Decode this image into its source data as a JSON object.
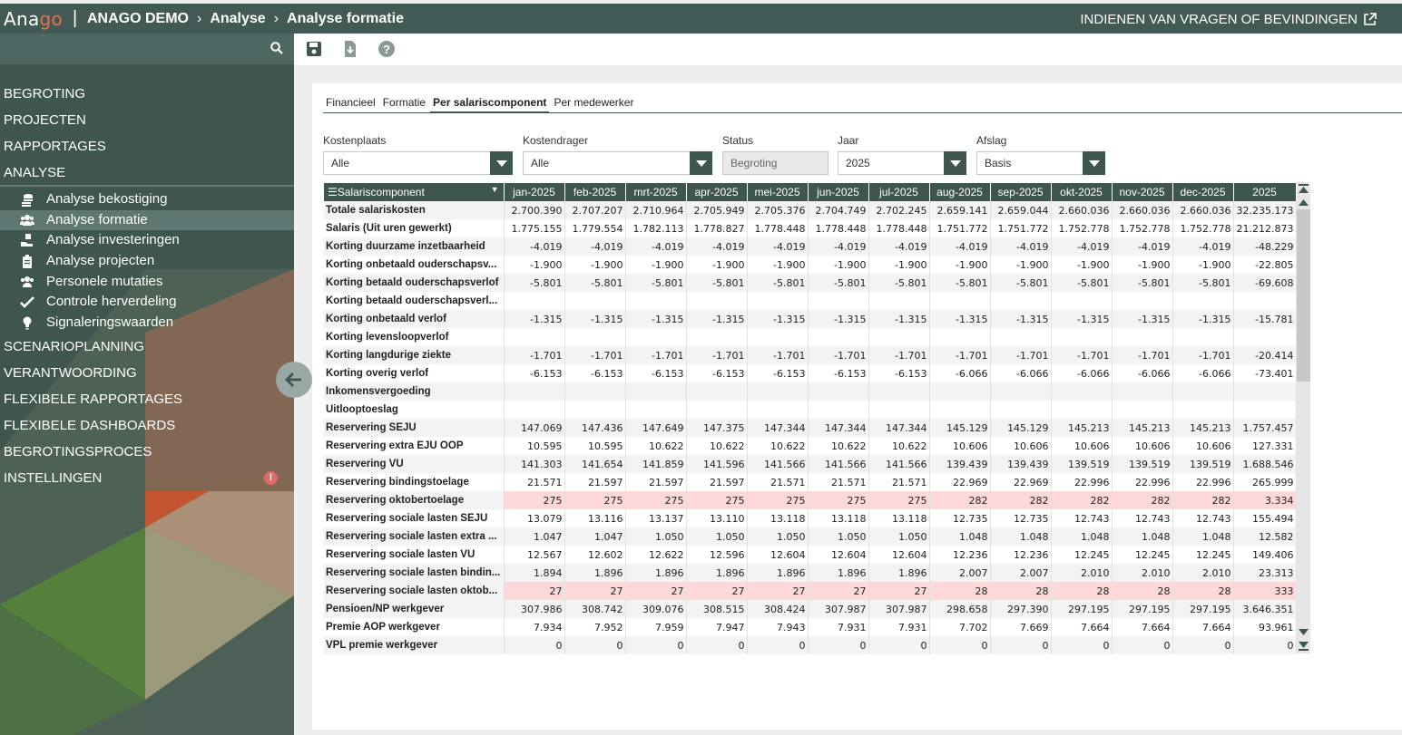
{
  "app": {
    "logo_prefix": "Ana",
    "logo_suffix": "go",
    "separator": "|"
  },
  "breadcrumb": {
    "items": [
      "ANAGO DEMO",
      "Analyse",
      "Analyse formatie"
    ],
    "separator": "›"
  },
  "feedback_link": "INDIENEN VAN VRAGEN OF BEVINDINGEN",
  "sidebar": {
    "items": [
      {
        "label": "BEGROTING"
      },
      {
        "label": "PROJECTEN"
      },
      {
        "label": "RAPPORTAGES"
      },
      {
        "label": "ANALYSE"
      }
    ],
    "sub_items": [
      {
        "label": "Analyse bekostiging",
        "icon": "coins-icon"
      },
      {
        "label": "Analyse formatie",
        "icon": "users-icon",
        "active": true
      },
      {
        "label": "Analyse investeringen",
        "icon": "hand-coins-icon"
      },
      {
        "label": "Analyse projecten",
        "icon": "clipboard-icon"
      },
      {
        "label": "Personele mutaties",
        "icon": "users-icon"
      },
      {
        "label": "Controle herverdeling",
        "icon": "check-icon"
      },
      {
        "label": "Signaleringswaarden",
        "icon": "lightbulb-icon"
      }
    ],
    "items_after": [
      {
        "label": "SCENARIOPLANNING"
      },
      {
        "label": "VERANTWOORDING"
      },
      {
        "label": "FLEXIBELE RAPPORTAGES"
      },
      {
        "label": "FLEXIBELE DASHBOARDS"
      },
      {
        "label": "BEGROTINGSPROCES"
      },
      {
        "label": "INSTELLINGEN",
        "alert": "!"
      }
    ]
  },
  "tabs": [
    "Financieel",
    "Formatie",
    "Per salariscomponent",
    "Per medewerker"
  ],
  "active_tab": "Per salariscomponent",
  "filters": {
    "kostenplaats": {
      "label": "Kostenplaats",
      "value": "Alle"
    },
    "kostendrager": {
      "label": "Kostendrager",
      "value": "Alle"
    },
    "status": {
      "label": "Status",
      "value": "Begroting"
    },
    "jaar": {
      "label": "Jaar",
      "value": "2025"
    },
    "afslag": {
      "label": "Afslag",
      "value": "Basis"
    }
  },
  "table": {
    "first_header": "Salariscomponent",
    "columns": [
      "jan-2025",
      "feb-2025",
      "mrt-2025",
      "apr-2025",
      "mei-2025",
      "jun-2025",
      "jul-2025",
      "aug-2025",
      "sep-2025",
      "okt-2025",
      "nov-2025",
      "dec-2025",
      "2025"
    ],
    "rows": [
      {
        "name": "Totale salariskosten",
        "values": [
          "2.700.390",
          "2.707.207",
          "2.710.964",
          "2.705.949",
          "2.705.376",
          "2.704.749",
          "2.702.245",
          "2.659.141",
          "2.659.044",
          "2.660.036",
          "2.660.036",
          "2.660.036",
          "32.235.173"
        ]
      },
      {
        "name": "Salaris (Uit uren gewerkt)",
        "values": [
          "1.775.155",
          "1.779.554",
          "1.782.113",
          "1.778.827",
          "1.778.448",
          "1.778.448",
          "1.778.448",
          "1.751.772",
          "1.751.772",
          "1.752.778",
          "1.752.778",
          "1.752.778",
          "21.212.873"
        ]
      },
      {
        "name": "Korting duurzame inzetbaarheid",
        "values": [
          "-4.019",
          "-4.019",
          "-4.019",
          "-4.019",
          "-4.019",
          "-4.019",
          "-4.019",
          "-4.019",
          "-4.019",
          "-4.019",
          "-4.019",
          "-4.019",
          "-48.229"
        ]
      },
      {
        "name": "Korting onbetaald ouderschapsv...",
        "values": [
          "-1.900",
          "-1.900",
          "-1.900",
          "-1.900",
          "-1.900",
          "-1.900",
          "-1.900",
          "-1.900",
          "-1.900",
          "-1.900",
          "-1.900",
          "-1.900",
          "-22.805"
        ]
      },
      {
        "name": "Korting betaald ouderschapsverlof",
        "values": [
          "-5.801",
          "-5.801",
          "-5.801",
          "-5.801",
          "-5.801",
          "-5.801",
          "-5.801",
          "-5.801",
          "-5.801",
          "-5.801",
          "-5.801",
          "-5.801",
          "-69.608"
        ]
      },
      {
        "name": "Korting betaald ouderschapsverl...",
        "values": [
          "",
          "",
          "",
          "",
          "",
          "",
          "",
          "",
          "",
          "",
          "",
          "",
          ""
        ]
      },
      {
        "name": "Korting onbetaald verlof",
        "values": [
          "-1.315",
          "-1.315",
          "-1.315",
          "-1.315",
          "-1.315",
          "-1.315",
          "-1.315",
          "-1.315",
          "-1.315",
          "-1.315",
          "-1.315",
          "-1.315",
          "-15.781"
        ]
      },
      {
        "name": "Korting levensloopverlof",
        "values": [
          "",
          "",
          "",
          "",
          "",
          "",
          "",
          "",
          "",
          "",
          "",
          "",
          ""
        ]
      },
      {
        "name": "Korting langdurige ziekte",
        "values": [
          "-1.701",
          "-1.701",
          "-1.701",
          "-1.701",
          "-1.701",
          "-1.701",
          "-1.701",
          "-1.701",
          "-1.701",
          "-1.701",
          "-1.701",
          "-1.701",
          "-20.414"
        ]
      },
      {
        "name": "Korting overig verlof",
        "values": [
          "-6.153",
          "-6.153",
          "-6.153",
          "-6.153",
          "-6.153",
          "-6.153",
          "-6.153",
          "-6.066",
          "-6.066",
          "-6.066",
          "-6.066",
          "-6.066",
          "-73.401"
        ]
      },
      {
        "name": "Inkomensvergoeding",
        "values": [
          "",
          "",
          "",
          "",
          "",
          "",
          "",
          "",
          "",
          "",
          "",
          "",
          ""
        ]
      },
      {
        "name": "Uitlooptoeslag",
        "values": [
          "",
          "",
          "",
          "",
          "",
          "",
          "",
          "",
          "",
          "",
          "",
          "",
          ""
        ]
      },
      {
        "name": "Reservering SEJU",
        "values": [
          "147.069",
          "147.436",
          "147.649",
          "147.375",
          "147.344",
          "147.344",
          "147.344",
          "145.129",
          "145.129",
          "145.213",
          "145.213",
          "145.213",
          "1.757.457"
        ]
      },
      {
        "name": "Reservering extra EJU OOP",
        "values": [
          "10.595",
          "10.595",
          "10.622",
          "10.622",
          "10.622",
          "10.622",
          "10.622",
          "10.606",
          "10.606",
          "10.606",
          "10.606",
          "10.606",
          "127.331"
        ]
      },
      {
        "name": "Reservering VU",
        "values": [
          "141.303",
          "141.654",
          "141.859",
          "141.596",
          "141.566",
          "141.566",
          "141.566",
          "139.439",
          "139.439",
          "139.519",
          "139.519",
          "139.519",
          "1.688.546"
        ]
      },
      {
        "name": "Reservering bindingstoelage",
        "values": [
          "21.571",
          "21.597",
          "21.597",
          "21.597",
          "21.571",
          "21.571",
          "21.571",
          "22.969",
          "22.969",
          "22.996",
          "22.996",
          "22.996",
          "265.999"
        ]
      },
      {
        "name": "Reservering oktobertoelage",
        "highlight": true,
        "values": [
          "275",
          "275",
          "275",
          "275",
          "275",
          "275",
          "275",
          "282",
          "282",
          "282",
          "282",
          "282",
          "3.334"
        ]
      },
      {
        "name": "Reservering sociale lasten SEJU",
        "values": [
          "13.079",
          "13.116",
          "13.137",
          "13.110",
          "13.118",
          "13.118",
          "13.118",
          "12.735",
          "12.735",
          "12.743",
          "12.743",
          "12.743",
          "155.494"
        ]
      },
      {
        "name": "Reservering sociale lasten extra ...",
        "values": [
          "1.047",
          "1.047",
          "1.050",
          "1.050",
          "1.050",
          "1.050",
          "1.050",
          "1.048",
          "1.048",
          "1.048",
          "1.048",
          "1.048",
          "12.582"
        ]
      },
      {
        "name": "Reservering sociale lasten VU",
        "values": [
          "12.567",
          "12.602",
          "12.622",
          "12.596",
          "12.604",
          "12.604",
          "12.604",
          "12.236",
          "12.236",
          "12.245",
          "12.245",
          "12.245",
          "149.406"
        ]
      },
      {
        "name": "Reservering sociale lasten bindin...",
        "values": [
          "1.894",
          "1.896",
          "1.896",
          "1.896",
          "1.896",
          "1.896",
          "1.896",
          "2.007",
          "2.007",
          "2.010",
          "2.010",
          "2.010",
          "23.313"
        ]
      },
      {
        "name": "Reservering sociale lasten oktob...",
        "highlight": true,
        "values": [
          "27",
          "27",
          "27",
          "27",
          "27",
          "27",
          "27",
          "28",
          "28",
          "28",
          "28",
          "28",
          "333"
        ]
      },
      {
        "name": "Pensioen/NP werkgever",
        "values": [
          "307.986",
          "308.742",
          "309.076",
          "308.515",
          "308.424",
          "307.987",
          "307.987",
          "298.658",
          "297.390",
          "297.195",
          "297.195",
          "297.195",
          "3.646.351"
        ]
      },
      {
        "name": "Premie AOP werkgever",
        "values": [
          "7.934",
          "7.952",
          "7.959",
          "7.947",
          "7.943",
          "7.931",
          "7.931",
          "7.702",
          "7.669",
          "7.664",
          "7.664",
          "7.664",
          "93.961"
        ]
      },
      {
        "name": "VPL premie werkgever",
        "values": [
          "0",
          "0",
          "0",
          "0",
          "0",
          "0",
          "0",
          "0",
          "0",
          "0",
          "0",
          "0",
          "0"
        ]
      }
    ]
  },
  "colors": {
    "header_bg": "#415a55",
    "sidebar_bg": "#3e5550",
    "accent": "#e8704a",
    "highlight_row": "#fcd9d8"
  }
}
